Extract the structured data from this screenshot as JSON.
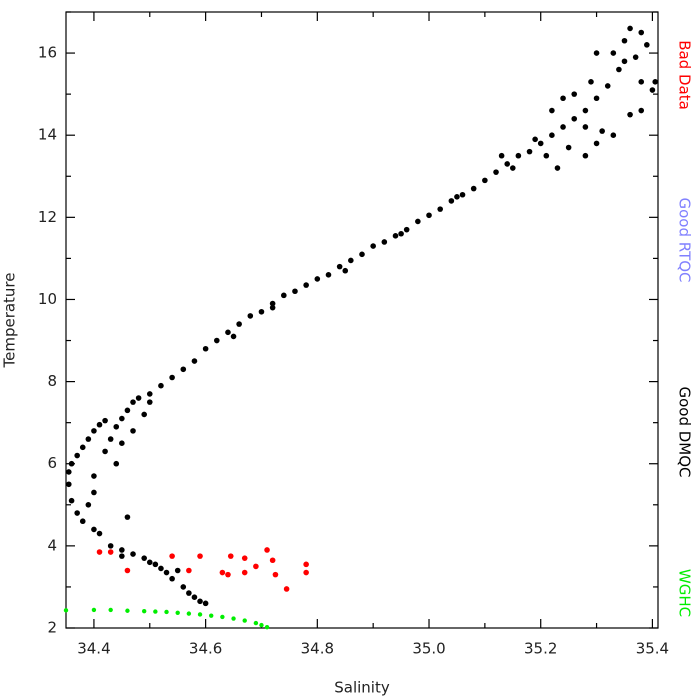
{
  "chart_data": {
    "type": "scatter",
    "xlabel": "Salinity",
    "ylabel": "Temperature",
    "xlim": [
      34.35,
      35.41
    ],
    "ylim": [
      2,
      17
    ],
    "xticks": [
      34.4,
      34.6,
      34.8,
      {
        "value": 35,
        "label": "35.0"
      },
      35.2,
      35.4
    ],
    "yticks": [
      2,
      4,
      6,
      8,
      10,
      12,
      14,
      16
    ],
    "grid": false,
    "series": [
      {
        "name": "Bad Data",
        "color": "#ff0000",
        "x": [
          34.41,
          34.43,
          34.46,
          34.54,
          34.57,
          34.59,
          34.63,
          34.64,
          34.645,
          34.67,
          34.67,
          34.69,
          34.71,
          34.72,
          34.725,
          34.745,
          34.78,
          34.78
        ],
        "y": [
          3.85,
          3.85,
          3.4,
          3.75,
          3.4,
          3.75,
          3.35,
          3.3,
          3.75,
          3.7,
          3.35,
          3.5,
          3.9,
          3.65,
          3.3,
          2.95,
          3.55,
          3.35
        ]
      },
      {
        "name": "Good RTQC",
        "color": "#8080ff",
        "x": [],
        "y": []
      },
      {
        "name": "Good DMQC",
        "color": "#000000",
        "x": [
          34.6,
          34.59,
          34.58,
          34.57,
          34.56,
          34.54,
          34.53,
          34.52,
          34.51,
          34.49,
          34.47,
          34.45,
          34.43,
          34.41,
          34.4,
          34.38,
          34.46,
          34.45,
          34.5,
          34.55,
          34.37,
          34.36,
          34.355,
          34.355,
          34.36,
          34.37,
          34.38,
          34.39,
          34.4,
          34.41,
          34.42,
          34.39,
          34.4,
          34.4,
          34.42,
          34.43,
          34.44,
          34.45,
          34.46,
          34.47,
          34.48,
          34.5,
          34.44,
          34.45,
          34.47,
          34.49,
          34.5,
          34.52,
          34.54,
          34.56,
          34.58,
          34.6,
          34.62,
          34.64,
          34.66,
          34.68,
          34.7,
          34.72,
          34.74,
          34.76,
          34.78,
          34.8,
          34.82,
          34.84,
          34.86,
          34.88,
          34.9,
          34.92,
          34.94,
          34.96,
          34.98,
          35.0,
          35.02,
          35.04,
          35.06,
          35.08,
          35.1,
          35.12,
          35.14,
          35.16,
          35.18,
          35.2,
          35.22,
          35.24,
          35.26,
          35.28,
          35.3,
          35.32,
          35.34,
          35.33,
          35.35,
          35.36,
          35.38,
          35.39,
          35.37,
          35.4,
          35.405,
          35.38,
          35.36,
          35.33,
          35.3,
          35.28,
          35.25,
          35.22,
          35.24,
          35.26,
          35.28,
          35.31,
          35.29,
          35.3,
          35.38,
          35.35,
          35.21,
          35.19,
          35.23,
          35.15,
          35.13,
          34.65,
          34.72,
          34.85,
          34.95,
          35.05
        ],
        "y": [
          2.6,
          2.65,
          2.75,
          2.85,
          3.0,
          3.2,
          3.35,
          3.45,
          3.55,
          3.7,
          3.8,
          3.9,
          4.0,
          4.3,
          4.4,
          4.6,
          4.7,
          3.75,
          3.6,
          3.4,
          4.8,
          5.1,
          5.5,
          5.8,
          6.0,
          6.2,
          6.4,
          6.6,
          6.8,
          6.95,
          7.05,
          5.0,
          5.3,
          5.7,
          6.3,
          6.6,
          6.9,
          7.1,
          7.3,
          7.5,
          7.6,
          7.7,
          6.0,
          6.5,
          6.8,
          7.2,
          7.5,
          7.9,
          8.1,
          8.3,
          8.5,
          8.8,
          9.0,
          9.2,
          9.4,
          9.6,
          9.7,
          9.9,
          10.1,
          10.2,
          10.35,
          10.5,
          10.6,
          10.8,
          10.95,
          11.1,
          11.3,
          11.4,
          11.55,
          11.7,
          11.9,
          12.05,
          12.2,
          12.4,
          12.55,
          12.7,
          12.9,
          13.1,
          13.3,
          13.5,
          13.6,
          13.8,
          14.0,
          14.2,
          14.4,
          14.6,
          14.9,
          15.2,
          15.6,
          16.0,
          16.3,
          16.6,
          16.5,
          16.2,
          15.9,
          15.1,
          15.3,
          14.6,
          14.5,
          14.0,
          13.8,
          13.5,
          13.7,
          14.6,
          14.9,
          15.0,
          14.2,
          14.1,
          15.3,
          16.0,
          15.3,
          15.8,
          13.5,
          13.9,
          13.2,
          13.2,
          13.5,
          9.1,
          9.8,
          10.7,
          11.6,
          12.5
        ]
      },
      {
        "name": "WGHC",
        "color": "#00ee00",
        "x": [
          34.35,
          34.4,
          34.43,
          34.46,
          34.49,
          34.51,
          34.53,
          34.55,
          34.57,
          34.59,
          34.61,
          34.63,
          34.65,
          34.67,
          34.69,
          34.7,
          34.71
        ],
        "y": [
          2.43,
          2.44,
          2.44,
          2.42,
          2.41,
          2.4,
          2.39,
          2.37,
          2.35,
          2.33,
          2.3,
          2.27,
          2.23,
          2.18,
          2.12,
          2.07,
          2.02
        ]
      }
    ]
  }
}
